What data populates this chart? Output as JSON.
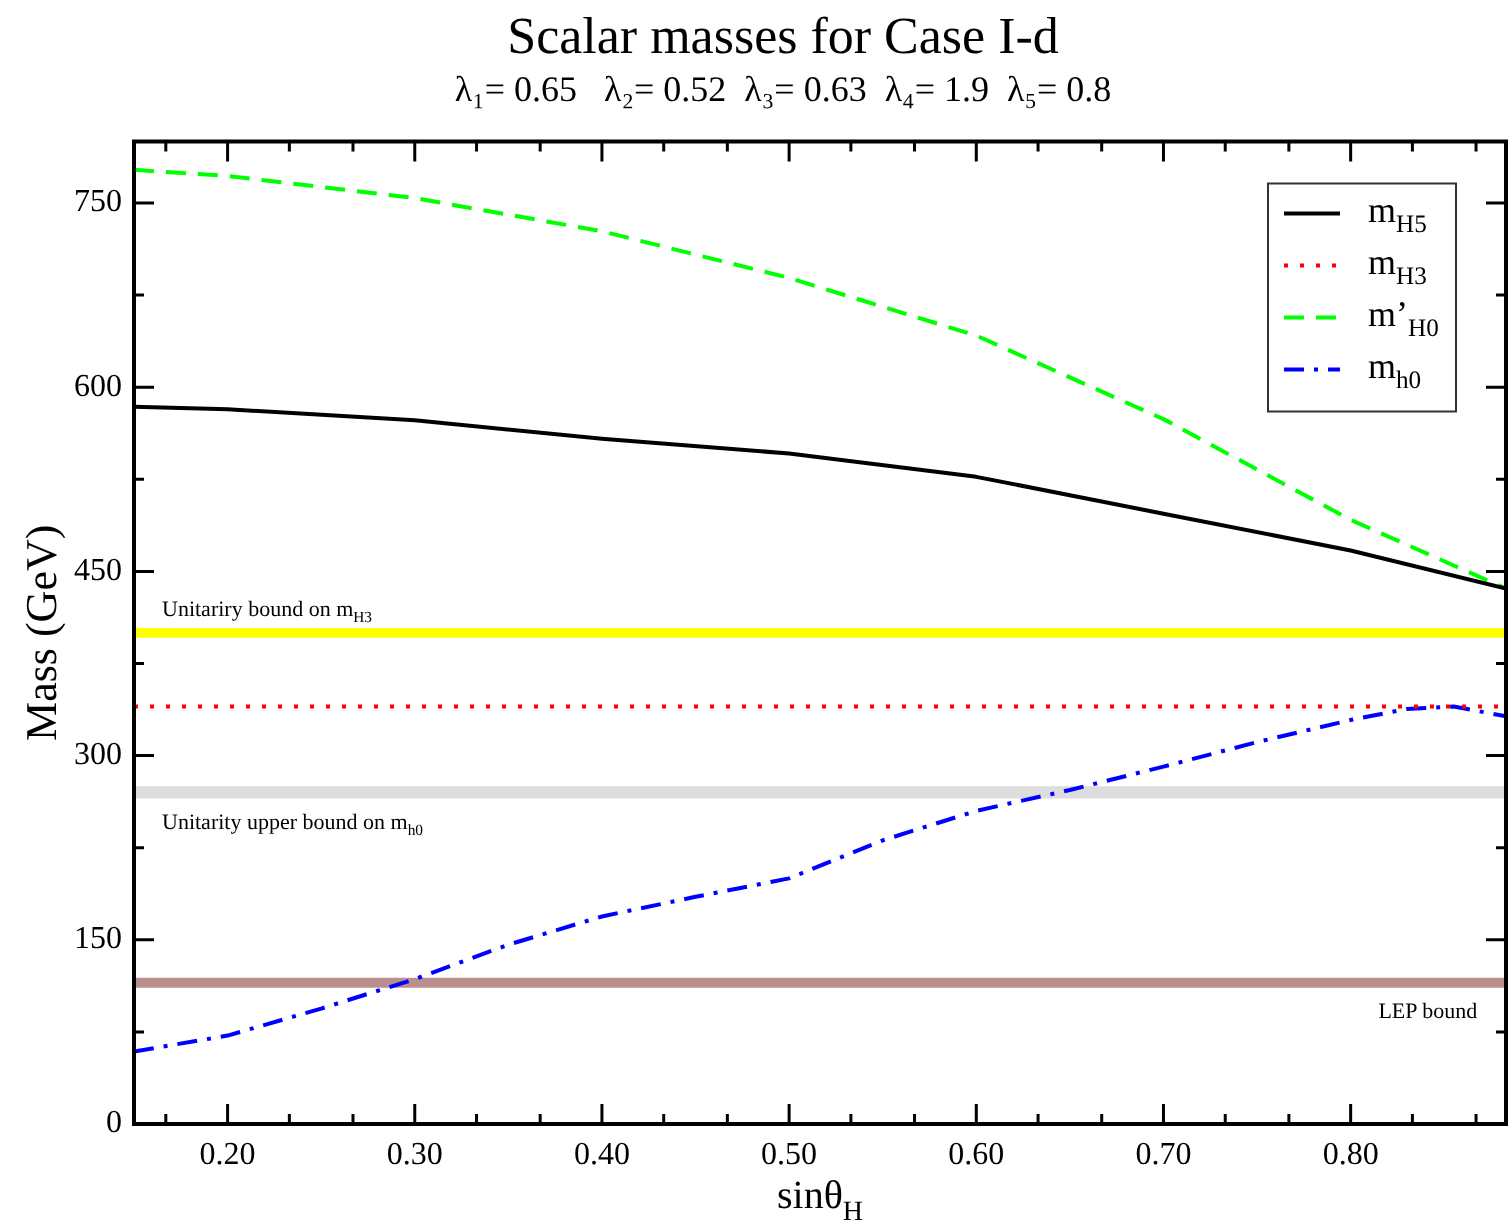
{
  "chart_data": {
    "type": "line",
    "title": "Scalar masses for Case I-d",
    "subtitle": "λ₁= 0.65   λ₂= 0.52  λ₃= 0.63  λ₄= 1.9  λ₅= 0.8",
    "xlabel": "sinθ$_{H}$",
    "ylabel": "Mass (GeV)",
    "xlim": [
      0.15,
      0.883
    ],
    "ylim": [
      0,
      800
    ],
    "xticks": [
      {
        "value": 0.167,
        "label": null
      },
      {
        "value": 0.2,
        "label": "0.20"
      },
      {
        "value": 0.233,
        "label": null
      },
      {
        "value": 0.267,
        "label": null
      },
      {
        "value": 0.3,
        "label": "0.30"
      },
      {
        "value": 0.333,
        "label": null
      },
      {
        "value": 0.367,
        "label": null
      },
      {
        "value": 0.4,
        "label": "0.40"
      },
      {
        "value": 0.433,
        "label": null
      },
      {
        "value": 0.467,
        "label": null
      },
      {
        "value": 0.5,
        "label": "0.50"
      },
      {
        "value": 0.533,
        "label": null
      },
      {
        "value": 0.567,
        "label": null
      },
      {
        "value": 0.6,
        "label": "0.60"
      },
      {
        "value": 0.633,
        "label": null
      },
      {
        "value": 0.667,
        "label": null
      },
      {
        "value": 0.7,
        "label": "0.70"
      },
      {
        "value": 0.733,
        "label": null
      },
      {
        "value": 0.767,
        "label": null
      },
      {
        "value": 0.8,
        "label": "0.80"
      },
      {
        "value": 0.833,
        "label": null
      },
      {
        "value": 0.867,
        "label": null
      }
    ],
    "yticks": [
      0,
      {
        "value": 75,
        "label": null
      },
      150,
      {
        "value": 225,
        "label": null
      },
      300,
      {
        "value": 375,
        "label": null
      },
      450,
      {
        "value": 525,
        "label": null
      },
      600,
      {
        "value": 675,
        "label": null
      },
      750
    ],
    "legend": "top right",
    "series": [
      {
        "name": "m$_{H5}$",
        "color": "#000000",
        "line_style": "solid",
        "x": [
          0.15,
          0.2,
          0.3,
          0.4,
          0.5,
          0.6,
          0.7,
          0.8,
          0.883
        ],
        "values": [
          584,
          582,
          573,
          558,
          546,
          527,
          497,
          467,
          436
        ]
      },
      {
        "name": "m$_{H3}$",
        "color": "#ff0000",
        "line_style": "dotted",
        "x": [
          0.15,
          0.883
        ],
        "values": [
          340,
          340
        ]
      },
      {
        "name": "m’$_{H0}$",
        "color": "#00ff00",
        "line_style": "dashed",
        "x": [
          0.15,
          0.2,
          0.3,
          0.4,
          0.5,
          0.6,
          0.7,
          0.8,
          0.883
        ],
        "values": [
          777,
          772,
          754,
          727,
          689,
          642,
          574,
          492,
          436
        ]
      },
      {
        "name": "m$_{h0}$",
        "color": "#0000ff",
        "line_style": "dashdot",
        "x": [
          0.15,
          0.2,
          0.25,
          0.3,
          0.35,
          0.4,
          0.45,
          0.5,
          0.55,
          0.6,
          0.65,
          0.7,
          0.75,
          0.8,
          0.83,
          0.855,
          0.883
        ],
        "values": [
          59,
          72,
          94,
          118,
          146,
          169,
          185,
          200,
          231,
          255,
          272,
          291,
          311,
          329,
          338,
          340,
          332
        ]
      }
    ],
    "bands": [
      {
        "axis": "y",
        "from": 396,
        "to": 404,
        "label": "Unitariry bound on m$_{H3}$",
        "color": "#ffff00"
      },
      {
        "axis": "y",
        "from": 265,
        "to": 275,
        "label": "Unitarity upper bound on m$_{h0}$",
        "color": "#dddddd"
      },
      {
        "axis": "y",
        "from": 111,
        "to": 119,
        "label": "LEP bound",
        "color": "#bc8f8f"
      }
    ]
  }
}
